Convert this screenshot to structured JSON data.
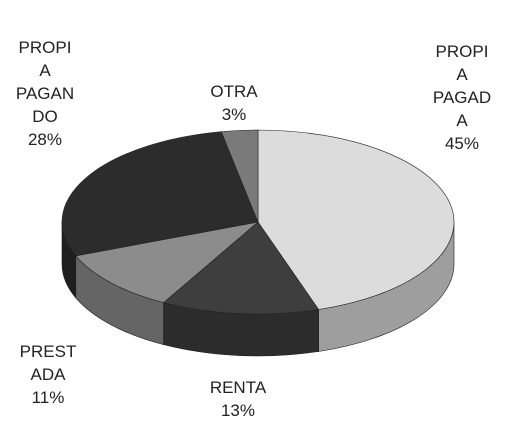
{
  "chart_data": {
    "type": "pie3d",
    "categories": [
      "PROPI\nA\nPAGAD\nA",
      "RENTA",
      "PREST\nADA",
      "PROPI\nA\nPAGAN\nDO",
      "OTRA"
    ],
    "values": [
      45,
      13,
      11,
      28,
      3
    ],
    "value_labels": [
      "45%",
      "13%",
      "11%",
      "28%",
      "3%"
    ],
    "colors": [
      "#dcdcdc",
      "#3e3e3e",
      "#8c8c8c",
      "#2c2c2c",
      "#7a7a7a"
    ]
  }
}
